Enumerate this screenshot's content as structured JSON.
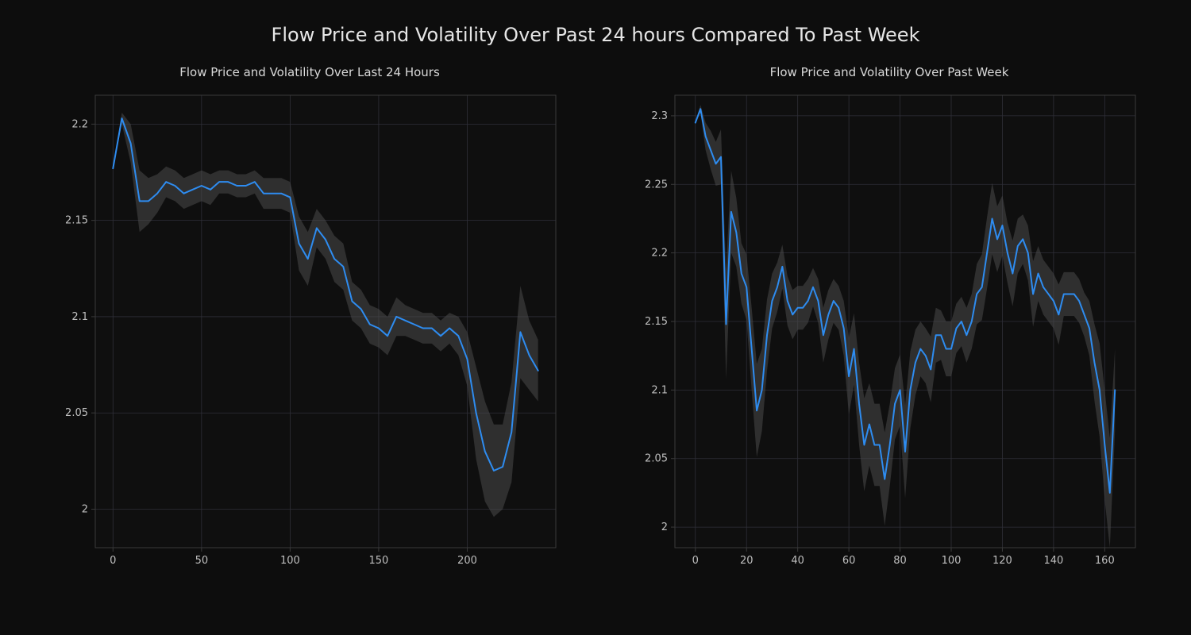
{
  "figure": {
    "suptitle": "Flow Price and Volatility Over Past 24 hours Compared To Past Week",
    "suptitle_fontsize": 24,
    "background_color": "#0d0d0d",
    "text_color": "#dcdcdc"
  },
  "chart_left": {
    "type": "line",
    "title": "Flow Price and Volatility Over Last 24 Hours",
    "title_fontsize": 15,
    "line_color": "#2e8cf0",
    "line_width": 2,
    "band_color": "#4a4a4a",
    "band_opacity": 0.55,
    "grid_color": "#2f2f38",
    "grid_width": 0.8,
    "axes_background": "#0f0f0f",
    "spine_color": "#3a3a3a",
    "tick_color": "#bfbfbf",
    "tick_fontsize": 13,
    "xlim": [
      -10,
      250
    ],
    "ylim": [
      1.98,
      2.215
    ],
    "xticks": [
      0,
      50,
      100,
      150,
      200
    ],
    "yticks": [
      2,
      2.05,
      2.1,
      2.15,
      2.2
    ],
    "x": [
      0,
      5,
      10,
      15,
      20,
      25,
      30,
      35,
      40,
      45,
      50,
      55,
      60,
      65,
      70,
      75,
      80,
      85,
      90,
      95,
      100,
      105,
      110,
      115,
      120,
      125,
      130,
      135,
      140,
      145,
      150,
      155,
      160,
      165,
      170,
      175,
      180,
      185,
      190,
      195,
      200,
      205,
      210,
      215,
      220,
      225,
      230,
      235,
      240
    ],
    "y": [
      2.177,
      2.203,
      2.19,
      2.16,
      2.16,
      2.164,
      2.17,
      2.168,
      2.164,
      2.166,
      2.168,
      2.166,
      2.17,
      2.17,
      2.168,
      2.168,
      2.17,
      2.164,
      2.164,
      2.164,
      2.162,
      2.138,
      2.13,
      2.146,
      2.14,
      2.13,
      2.126,
      2.108,
      2.104,
      2.096,
      2.094,
      2.09,
      2.1,
      2.098,
      2.096,
      2.094,
      2.094,
      2.09,
      2.094,
      2.09,
      2.078,
      2.05,
      2.03,
      2.02,
      2.022,
      2.04,
      2.092,
      2.08,
      2.072
    ],
    "band_half": [
      0.0,
      0.003,
      0.01,
      0.016,
      0.012,
      0.01,
      0.008,
      0.008,
      0.008,
      0.008,
      0.008,
      0.008,
      0.006,
      0.006,
      0.006,
      0.006,
      0.006,
      0.008,
      0.008,
      0.008,
      0.008,
      0.014,
      0.014,
      0.01,
      0.01,
      0.012,
      0.012,
      0.01,
      0.01,
      0.01,
      0.01,
      0.01,
      0.01,
      0.008,
      0.008,
      0.008,
      0.008,
      0.008,
      0.008,
      0.01,
      0.014,
      0.024,
      0.026,
      0.024,
      0.022,
      0.026,
      0.024,
      0.018,
      0.016
    ]
  },
  "chart_right": {
    "type": "line",
    "title": "Flow Price and Volatility Over Past Week",
    "title_fontsize": 15,
    "line_color": "#2e8cf0",
    "line_width": 2,
    "band_color": "#4a4a4a",
    "band_opacity": 0.55,
    "grid_color": "#2f2f38",
    "grid_width": 0.8,
    "axes_background": "#0f0f0f",
    "spine_color": "#3a3a3a",
    "tick_color": "#bfbfbf",
    "tick_fontsize": 13,
    "xlim": [
      -8,
      172
    ],
    "ylim": [
      1.985,
      2.315
    ],
    "xticks": [
      0,
      20,
      40,
      60,
      80,
      100,
      120,
      140,
      160
    ],
    "yticks": [
      2,
      2.05,
      2.1,
      2.15,
      2.2,
      2.25,
      2.3
    ],
    "x": [
      0,
      2,
      4,
      6,
      8,
      10,
      12,
      14,
      16,
      18,
      20,
      22,
      24,
      26,
      28,
      30,
      32,
      34,
      36,
      38,
      40,
      42,
      44,
      46,
      48,
      50,
      52,
      54,
      56,
      58,
      60,
      62,
      64,
      66,
      68,
      70,
      72,
      74,
      76,
      78,
      80,
      82,
      84,
      86,
      88,
      90,
      92,
      94,
      96,
      98,
      100,
      102,
      104,
      106,
      108,
      110,
      112,
      114,
      116,
      118,
      120,
      122,
      124,
      126,
      128,
      130,
      132,
      134,
      136,
      138,
      140,
      142,
      144,
      146,
      148,
      150,
      152,
      154,
      156,
      158,
      160,
      162,
      164
    ],
    "y": [
      2.295,
      2.305,
      2.285,
      2.275,
      2.265,
      2.27,
      2.148,
      2.23,
      2.215,
      2.185,
      2.175,
      2.13,
      2.085,
      2.1,
      2.14,
      2.165,
      2.175,
      2.19,
      2.165,
      2.155,
      2.16,
      2.16,
      2.165,
      2.175,
      2.165,
      2.14,
      2.155,
      2.165,
      2.16,
      2.145,
      2.11,
      2.13,
      2.09,
      2.06,
      2.075,
      2.06,
      2.06,
      2.035,
      2.06,
      2.09,
      2.1,
      2.055,
      2.1,
      2.12,
      2.13,
      2.125,
      2.115,
      2.14,
      2.14,
      2.13,
      2.13,
      2.145,
      2.15,
      2.14,
      2.15,
      2.17,
      2.175,
      2.2,
      2.225,
      2.21,
      2.22,
      2.2,
      2.185,
      2.205,
      2.21,
      2.2,
      2.17,
      2.185,
      2.175,
      2.17,
      2.165,
      2.155,
      2.17,
      2.17,
      2.17,
      2.165,
      2.155,
      2.145,
      2.12,
      2.1,
      2.06,
      2.025,
      2.1
    ],
    "band_half": [
      0.0,
      0.003,
      0.01,
      0.014,
      0.016,
      0.02,
      0.04,
      0.03,
      0.025,
      0.022,
      0.024,
      0.03,
      0.034,
      0.03,
      0.026,
      0.02,
      0.018,
      0.016,
      0.018,
      0.018,
      0.016,
      0.016,
      0.016,
      0.014,
      0.016,
      0.02,
      0.018,
      0.016,
      0.016,
      0.02,
      0.028,
      0.026,
      0.03,
      0.034,
      0.03,
      0.03,
      0.03,
      0.034,
      0.03,
      0.026,
      0.026,
      0.034,
      0.028,
      0.024,
      0.02,
      0.02,
      0.024,
      0.02,
      0.018,
      0.02,
      0.02,
      0.018,
      0.018,
      0.02,
      0.02,
      0.022,
      0.024,
      0.026,
      0.026,
      0.024,
      0.022,
      0.022,
      0.024,
      0.02,
      0.018,
      0.02,
      0.024,
      0.02,
      0.02,
      0.02,
      0.02,
      0.022,
      0.016,
      0.016,
      0.016,
      0.016,
      0.016,
      0.02,
      0.028,
      0.034,
      0.04,
      0.04,
      0.03
    ]
  }
}
